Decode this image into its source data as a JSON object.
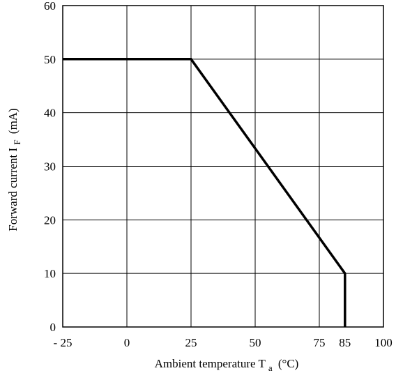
{
  "chart_data": {
    "type": "line",
    "title": "",
    "xlabel": "Ambient temperature T",
    "xlabel_sub": "a",
    "xlabel_unit": "(°C)",
    "ylabel": "Forward current I",
    "ylabel_sub": "F",
    "ylabel_unit": "(mA)",
    "xlim": [
      -25,
      100
    ],
    "ylim": [
      0,
      60
    ],
    "grid": true,
    "x_gridlines": [
      -25,
      0,
      25,
      50,
      75,
      100
    ],
    "y_gridlines": [
      0,
      10,
      20,
      30,
      40,
      50,
      60
    ],
    "x_ticks": [
      {
        "value": -25,
        "label": "- 25"
      },
      {
        "value": 0,
        "label": "0"
      },
      {
        "value": 25,
        "label": "25"
      },
      {
        "value": 50,
        "label": "50"
      },
      {
        "value": 75,
        "label": "75"
      },
      {
        "value": 85,
        "label": "85"
      },
      {
        "value": 100,
        "label": "100"
      }
    ],
    "y_ticks": [
      {
        "value": 0,
        "label": "0"
      },
      {
        "value": 10,
        "label": "10"
      },
      {
        "value": 20,
        "label": "20"
      },
      {
        "value": 30,
        "label": "30"
      },
      {
        "value": 40,
        "label": "40"
      },
      {
        "value": 50,
        "label": "50"
      },
      {
        "value": 60,
        "label": "60"
      }
    ],
    "series": [
      {
        "x": [
          -25,
          25,
          85,
          85
        ],
        "y": [
          50,
          50,
          10,
          0
        ]
      }
    ]
  }
}
